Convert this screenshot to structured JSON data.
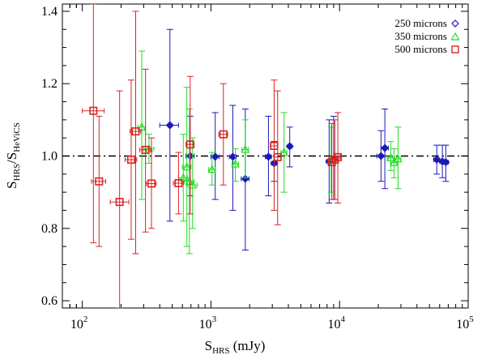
{
  "chart_data": {
    "type": "scatter",
    "x_scale": "log",
    "xlim": [
      70,
      100000
    ],
    "ylim": [
      0.58,
      1.42
    ],
    "xlabel": {
      "main": "S",
      "sub": "HRS",
      "rest": " (mJy)"
    },
    "ylabel": {
      "main1": "S",
      "sub1": "HRS",
      "sep": "/S",
      "sub2": "HeViCS"
    },
    "x_ticks": [
      {
        "value": 100,
        "base": "10",
        "exp": "2"
      },
      {
        "value": 1000,
        "base": "10",
        "exp": "3"
      },
      {
        "value": 10000,
        "base": "10",
        "exp": "4"
      },
      {
        "value": 100000,
        "base": "10",
        "exp": "5"
      }
    ],
    "y_ticks": [
      {
        "value": 0.6,
        "label": "0.6"
      },
      {
        "value": 0.8,
        "label": "0.8"
      },
      {
        "value": 1.0,
        "label": "1.0"
      },
      {
        "value": 1.2,
        "label": "1.2"
      },
      {
        "value": 1.4,
        "label": "1.4"
      }
    ],
    "reference_line": {
      "y": 1.0,
      "style": "dash-dot"
    },
    "legend_position": "top-right",
    "series": [
      {
        "name": "250 microns",
        "marker": "diamond",
        "color": "#1a1ab8",
        "points": [
          {
            "x": 480,
            "y": 1.085,
            "ylo": 0.82,
            "yhi": 1.35,
            "xlo": 400,
            "xhi": 560
          },
          {
            "x": 690,
            "y": 1.0,
            "ylo": 0.89,
            "yhi": 1.11,
            "xlo": 640,
            "xhi": 740
          },
          {
            "x": 1080,
            "y": 0.998,
            "ylo": 0.88,
            "yhi": 1.12,
            "xlo": 1000,
            "xhi": 1160
          },
          {
            "x": 1480,
            "y": 0.998,
            "ylo": 0.85,
            "yhi": 1.14,
            "xlo": 1390,
            "xhi": 1570
          },
          {
            "x": 1850,
            "y": 0.937,
            "ylo": 0.74,
            "yhi": 1.13,
            "xlo": 1720,
            "xhi": 1980
          },
          {
            "x": 2800,
            "y": 0.998,
            "ylo": 0.89,
            "yhi": 1.11,
            "xlo": 2650,
            "xhi": 2950
          },
          {
            "x": 3100,
            "y": 0.98,
            "ylo": 0.93,
            "yhi": 1.04,
            "xlo": 2950,
            "xhi": 3250
          },
          {
            "x": 4100,
            "y": 1.027,
            "ylo": 0.97,
            "yhi": 1.08,
            "xlo": 3950,
            "xhi": 4250
          },
          {
            "x": 8300,
            "y": 0.985,
            "ylo": 0.87,
            "yhi": 1.1,
            "xlo": 7900,
            "xhi": 8700
          },
          {
            "x": 9000,
            "y": 0.99,
            "ylo": 0.88,
            "yhi": 1.11,
            "xlo": 8600,
            "xhi": 9400
          },
          {
            "x": 21000,
            "y": 1.0,
            "ylo": 0.93,
            "yhi": 1.07,
            "xlo": 19500,
            "xhi": 22500
          },
          {
            "x": 22500,
            "y": 1.022,
            "ylo": 0.91,
            "yhi": 1.13,
            "xlo": 21000,
            "xhi": 24000
          },
          {
            "x": 57000,
            "y": 0.99,
            "ylo": 0.95,
            "yhi": 1.03,
            "xlo": 54000,
            "xhi": 60000
          },
          {
            "x": 63000,
            "y": 0.985,
            "ylo": 0.94,
            "yhi": 1.03,
            "xlo": 60000,
            "xhi": 66000
          },
          {
            "x": 67000,
            "y": 0.983,
            "ylo": 0.93,
            "yhi": 1.03,
            "xlo": 64000,
            "xhi": 70000
          }
        ]
      },
      {
        "name": "350 microns",
        "marker": "triangle",
        "color": "#22dd22",
        "points": [
          {
            "x": 290,
            "y": 1.08,
            "ylo": 0.88,
            "yhi": 1.29,
            "xlo": 270,
            "xhi": 310
          },
          {
            "x": 330,
            "y": 1.02,
            "ylo": 0.98,
            "yhi": 1.06,
            "xlo": 300,
            "xhi": 360
          },
          {
            "x": 610,
            "y": 0.94,
            "ylo": 0.82,
            "yhi": 1.06,
            "xlo": 560,
            "xhi": 660
          },
          {
            "x": 650,
            "y": 0.97,
            "ylo": 0.75,
            "yhi": 1.19,
            "xlo": 600,
            "xhi": 700
          },
          {
            "x": 680,
            "y": 0.93,
            "ylo": 0.73,
            "yhi": 1.13,
            "xlo": 620,
            "xhi": 740
          },
          {
            "x": 720,
            "y": 0.92,
            "ylo": 0.8,
            "yhi": 1.05,
            "xlo": 660,
            "xhi": 780
          },
          {
            "x": 1020,
            "y": 0.963,
            "ylo": 0.92,
            "yhi": 1.01,
            "xlo": 960,
            "xhi": 1080
          },
          {
            "x": 1550,
            "y": 0.978,
            "ylo": 0.93,
            "yhi": 1.02,
            "xlo": 1460,
            "xhi": 1640
          },
          {
            "x": 1850,
            "y": 1.018,
            "ylo": 0.94,
            "yhi": 1.1,
            "xlo": 1740,
            "xhi": 1960
          },
          {
            "x": 3700,
            "y": 1.01,
            "ylo": 0.9,
            "yhi": 1.12,
            "xlo": 3500,
            "xhi": 3900
          },
          {
            "x": 8600,
            "y": 0.988,
            "ylo": 0.9,
            "yhi": 1.08,
            "xlo": 8200,
            "xhi": 9000
          },
          {
            "x": 25000,
            "y": 0.995,
            "ylo": 0.96,
            "yhi": 1.04,
            "xlo": 23500,
            "xhi": 26500
          },
          {
            "x": 26500,
            "y": 0.982,
            "ylo": 0.94,
            "yhi": 1.02,
            "xlo": 25000,
            "xhi": 28000
          },
          {
            "x": 28500,
            "y": 0.992,
            "ylo": 0.91,
            "yhi": 1.08,
            "xlo": 27000,
            "xhi": 30000
          }
        ]
      },
      {
        "name": "500 microns",
        "marker": "square",
        "color": "#dd2222",
        "points": [
          {
            "x": 122,
            "y": 1.125,
            "ylo": 0.76,
            "yhi": 1.42,
            "xlo": 100,
            "xhi": 148
          },
          {
            "x": 135,
            "y": 0.93,
            "ylo": 0.75,
            "yhi": 1.11,
            "xlo": 118,
            "xhi": 152
          },
          {
            "x": 195,
            "y": 0.873,
            "ylo": 0.58,
            "yhi": 1.18,
            "xlo": 165,
            "xhi": 230
          },
          {
            "x": 240,
            "y": 0.99,
            "ylo": 0.77,
            "yhi": 1.21,
            "xlo": 215,
            "xhi": 265
          },
          {
            "x": 260,
            "y": 1.068,
            "ylo": 0.73,
            "yhi": 1.4,
            "xlo": 235,
            "xhi": 285
          },
          {
            "x": 310,
            "y": 1.017,
            "ylo": 0.79,
            "yhi": 1.24,
            "xlo": 280,
            "xhi": 340
          },
          {
            "x": 345,
            "y": 0.924,
            "ylo": 0.8,
            "yhi": 1.05,
            "xlo": 315,
            "xhi": 375
          },
          {
            "x": 560,
            "y": 0.925,
            "ylo": 0.84,
            "yhi": 1.01,
            "xlo": 510,
            "xhi": 610
          },
          {
            "x": 690,
            "y": 1.032,
            "ylo": 0.84,
            "yhi": 1.22,
            "xlo": 640,
            "xhi": 740
          },
          {
            "x": 1250,
            "y": 1.06,
            "ylo": 0.92,
            "yhi": 1.2,
            "xlo": 1150,
            "xhi": 1350
          },
          {
            "x": 3100,
            "y": 1.028,
            "ylo": 0.85,
            "yhi": 1.21,
            "xlo": 2900,
            "xhi": 3300
          },
          {
            "x": 3300,
            "y": 0.997,
            "ylo": 0.81,
            "yhi": 1.18,
            "xlo": 3100,
            "xhi": 3500
          },
          {
            "x": 8700,
            "y": 0.983,
            "ylo": 0.88,
            "yhi": 1.09,
            "xlo": 8300,
            "xhi": 9100
          },
          {
            "x": 9200,
            "y": 0.99,
            "ylo": 0.88,
            "yhi": 1.1,
            "xlo": 8800,
            "xhi": 9600
          },
          {
            "x": 9700,
            "y": 0.997,
            "ylo": 0.87,
            "yhi": 1.12,
            "xlo": 9300,
            "xhi": 10100
          }
        ]
      }
    ]
  }
}
